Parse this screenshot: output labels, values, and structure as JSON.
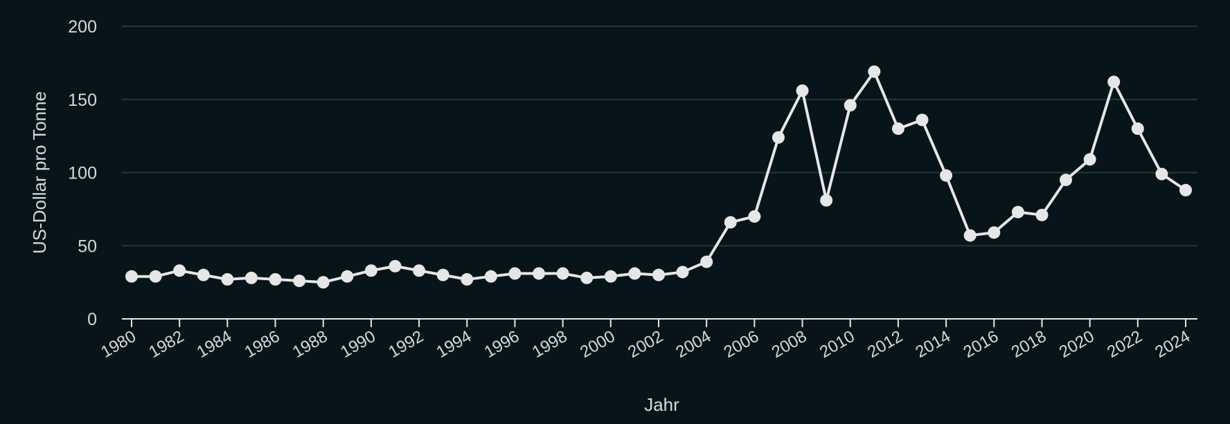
{
  "chart_data": {
    "type": "line",
    "title": "",
    "xlabel": "Jahr",
    "ylabel": "US-Dollar pro Tonne",
    "xlim": [
      1980,
      2024
    ],
    "ylim": [
      0,
      200
    ],
    "grid": true,
    "x_ticks": [
      1980,
      1982,
      1984,
      1986,
      1988,
      1990,
      1992,
      1994,
      1996,
      1998,
      2000,
      2002,
      2004,
      2006,
      2008,
      2010,
      2012,
      2014,
      2016,
      2018,
      2020,
      2022,
      2024
    ],
    "y_ticks": [
      0,
      50,
      100,
      150,
      200
    ],
    "colors": {
      "background": "#07151b",
      "line": "#e6e6e6",
      "grid": "#24363b",
      "axis": "#e6e6e6",
      "text": "#d8dadb"
    },
    "series": [
      {
        "x": [
          1980,
          1981,
          1982,
          1983,
          1984,
          1985,
          1986,
          1987,
          1988,
          1989,
          1990,
          1991,
          1992,
          1993,
          1994,
          1995,
          1996,
          1997,
          1998,
          1999,
          2000,
          2001,
          2002,
          2003,
          2004,
          2005,
          2006,
          2007,
          2008,
          2009,
          2010,
          2011,
          2012,
          2013,
          2014,
          2015,
          2016,
          2017,
          2018,
          2019,
          2020,
          2021,
          2022,
          2023,
          2024
        ],
        "values": [
          29,
          29,
          33,
          30,
          27,
          28,
          27,
          26,
          25,
          29,
          33,
          36,
          33,
          30,
          27,
          29,
          31,
          31,
          31,
          28,
          29,
          31,
          30,
          32,
          39,
          66,
          70,
          124,
          156,
          81,
          146,
          169,
          130,
          136,
          98,
          57,
          59,
          73,
          71,
          95,
          109,
          162,
          130,
          99,
          88
        ]
      }
    ]
  }
}
